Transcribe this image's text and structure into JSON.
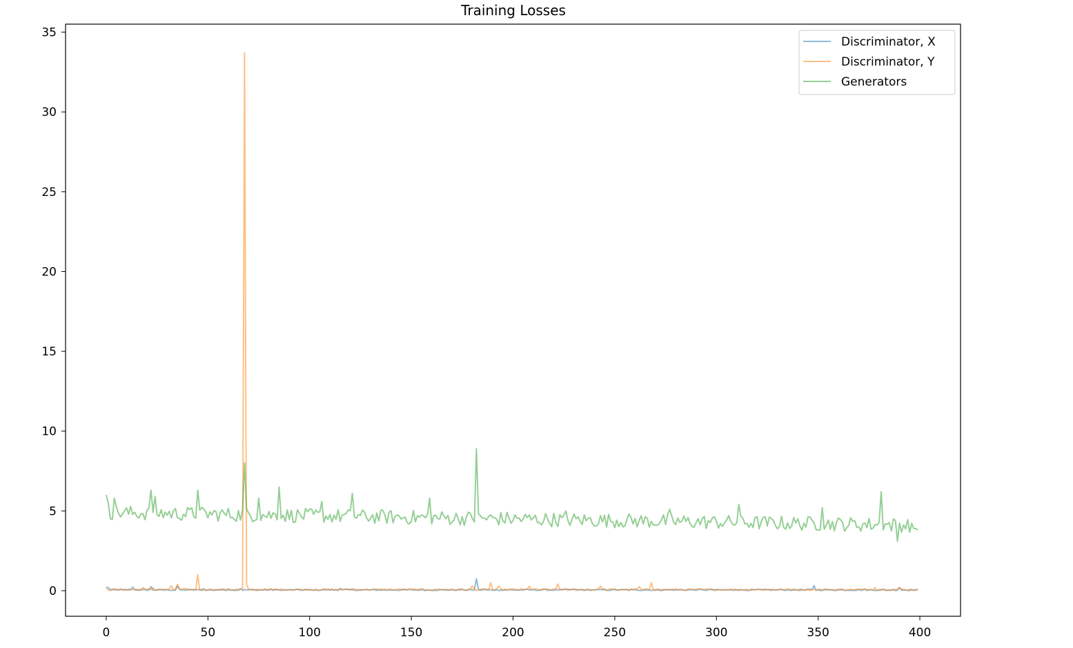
{
  "chart_data": {
    "type": "line",
    "title": "Training Losses",
    "xlabel": "",
    "ylabel": "",
    "xlim": [
      -20,
      420
    ],
    "ylim": [
      -1.6,
      35.5
    ],
    "xticks": [
      0,
      50,
      100,
      150,
      200,
      250,
      300,
      350,
      400
    ],
    "yticks": [
      0,
      5,
      10,
      15,
      20,
      25,
      30,
      35
    ],
    "grid": false,
    "legend_position": "top-right",
    "n_points": 400,
    "series": [
      {
        "name": "Discriminator, X",
        "color": "#1f77b4",
        "base": 0.05,
        "noise": 0.04,
        "spikes": [
          [
            0,
            0.22
          ],
          [
            1,
            0.2
          ],
          [
            13,
            0.22
          ],
          [
            22,
            0.25
          ],
          [
            35,
            0.3
          ],
          [
            48,
            0.12
          ],
          [
            60,
            0.12
          ],
          [
            66,
            0.13
          ],
          [
            115,
            0.15
          ],
          [
            121,
            0.12
          ],
          [
            182,
            0.75
          ],
          [
            230,
            0.08
          ],
          [
            310,
            0.06
          ],
          [
            348,
            0.32
          ],
          [
            390,
            0.2
          ]
        ]
      },
      {
        "name": "Discriminator, Y",
        "color": "#ff7f0e",
        "base": 0.07,
        "noise": 0.05,
        "spikes": [
          [
            0,
            0.15
          ],
          [
            18,
            0.2
          ],
          [
            23,
            0.2
          ],
          [
            32,
            0.3
          ],
          [
            35,
            0.4
          ],
          [
            45,
            1.0
          ],
          [
            68,
            33.7
          ],
          [
            69,
            0.4
          ],
          [
            180,
            0.3
          ],
          [
            189,
            0.5
          ],
          [
            193,
            0.3
          ],
          [
            208,
            0.28
          ],
          [
            222,
            0.42
          ],
          [
            243,
            0.3
          ],
          [
            262,
            0.25
          ],
          [
            268,
            0.5
          ],
          [
            378,
            0.2
          ],
          [
            390,
            0.2
          ]
        ]
      },
      {
        "name": "Generators",
        "color": "#2ca02c",
        "base_start": 4.9,
        "base_end": 4.1,
        "noise": 0.45,
        "spikes": [
          [
            0,
            6.0
          ],
          [
            1,
            5.5
          ],
          [
            4,
            5.8
          ],
          [
            22,
            6.3
          ],
          [
            24,
            5.9
          ],
          [
            45,
            6.3
          ],
          [
            68,
            8.0
          ],
          [
            75,
            5.8
          ],
          [
            85,
            6.5
          ],
          [
            106,
            5.6
          ],
          [
            121,
            6.1
          ],
          [
            159,
            5.8
          ],
          [
            182,
            8.9
          ],
          [
            226,
            5.0
          ],
          [
            277,
            5.1
          ],
          [
            311,
            5.4
          ],
          [
            352,
            5.2
          ],
          [
            381,
            6.2
          ],
          [
            389,
            3.1
          ],
          [
            397,
            3.9
          ],
          [
            399,
            3.8
          ]
        ]
      }
    ]
  }
}
